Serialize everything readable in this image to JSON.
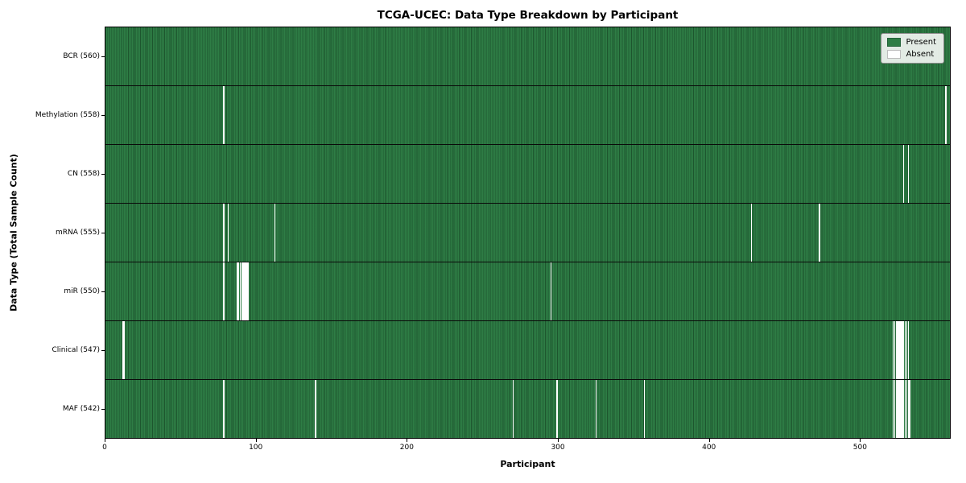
{
  "chart_data": {
    "type": "heatmap",
    "title": "TCGA-UCEC: Data Type Breakdown by Participant",
    "xlabel": "Participant",
    "ylabel": "Data Type (Total Sample Count)",
    "x_min": 0,
    "x_max": 560,
    "x_ticks": [
      0,
      100,
      200,
      300,
      400,
      500
    ],
    "legend": [
      {
        "label": "Present",
        "color": "#2e7d45"
      },
      {
        "label": "Absent",
        "color": "#ffffff"
      }
    ],
    "colors": {
      "present": "#2e7d45",
      "present_stripe": "#1b5e34",
      "absent": "#ffffff"
    },
    "rows": [
      {
        "label": "BCR (560)",
        "data_type": "BCR",
        "total": 560,
        "absent_positions": []
      },
      {
        "label": "Methylation (558)",
        "data_type": "Methylation",
        "total": 558,
        "absent_positions": [
          78,
          557
        ]
      },
      {
        "label": "CN (558)",
        "data_type": "CN",
        "total": 558,
        "absent_positions": [
          529,
          532
        ]
      },
      {
        "label": "mRNA (555)",
        "data_type": "mRNA",
        "total": 555,
        "absent_positions": [
          78,
          81,
          112,
          428,
          473
        ]
      },
      {
        "label": "miR (550)",
        "data_type": "miR",
        "total": 550,
        "absent_positions": [
          78,
          87,
          88,
          89,
          90,
          91,
          92,
          93,
          94,
          295
        ]
      },
      {
        "label": "Clinical (547)",
        "data_type": "Clinical",
        "total": 547,
        "absent_positions": [
          11,
          12,
          522,
          523,
          524,
          525,
          526,
          527,
          528,
          529,
          530,
          531,
          532
        ]
      },
      {
        "label": "MAF (542)",
        "data_type": "MAF",
        "total": 542,
        "absent_positions": [
          78,
          139,
          270,
          299,
          325,
          357,
          522,
          523,
          524,
          525,
          526,
          527,
          528,
          529,
          530,
          531,
          532,
          533
        ]
      }
    ]
  }
}
